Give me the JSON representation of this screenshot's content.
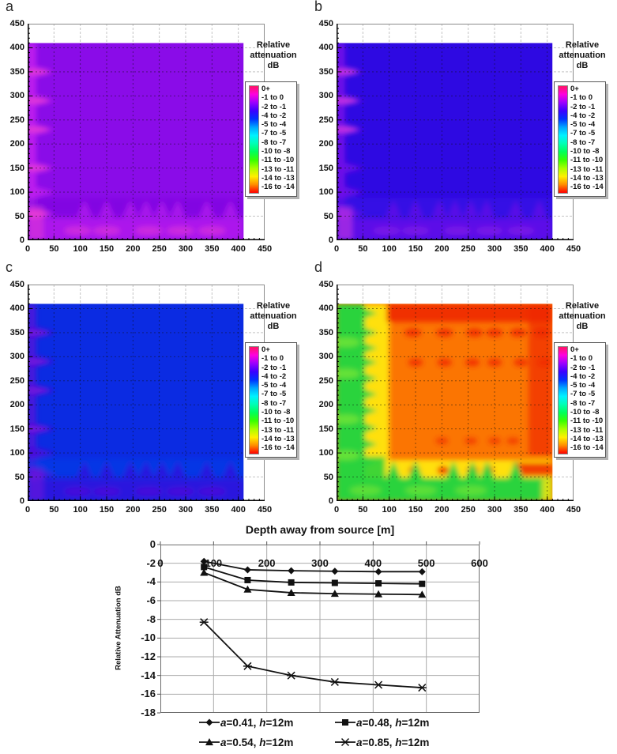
{
  "figure": {
    "panels": [
      {
        "id": "a",
        "letter": "a",
        "colors": {
          "base": "#8A0CE8",
          "left": "#BE1DEE",
          "left_spot": "#EA3ED2",
          "bottom": "#AC15EC",
          "bottom_spot": "#D52FDC",
          "band": "#7C0ADF"
        }
      },
      {
        "id": "b",
        "letter": "b",
        "colors": {
          "base": "#2E09E2",
          "left": "#6F11E8",
          "left_spot": "#D83AE0",
          "bottom": "#5C10E8",
          "bottom_spot": "#7E18E6",
          "band": "#3D0FE8"
        }
      },
      {
        "id": "c",
        "letter": "c",
        "colors": {
          "base": "#0B2BE2",
          "left": "#4A12DC",
          "left_spot": "#7B1ADC",
          "bottom": "#2A13DE",
          "bottom_spot": "#4B12D8",
          "band": "#0B3FE8"
        }
      },
      {
        "id": "d",
        "letter": "d",
        "colors": {
          "base": "#FB7502",
          "red": "#F02800",
          "yellow": "#FFE608",
          "green": "#2BD33C",
          "green_light": "#8CEC34"
        }
      }
    ],
    "heatmap_axes": {
      "ticks": [
        "0",
        "50",
        "100",
        "150",
        "200",
        "250",
        "300",
        "350",
        "400",
        "450"
      ],
      "x_range": [
        0,
        450
      ],
      "y_range": [
        0,
        450
      ],
      "data_extent": [
        0,
        410
      ]
    },
    "colorbar": {
      "title_lines": [
        "Relative",
        "attenuation",
        "dB"
      ],
      "entries": [
        "0+",
        "-1 to 0",
        "-2 to -1",
        "-4 to -2",
        "-5 to -4",
        "-7 to -5",
        "-8 to -7",
        "-10 to -8",
        "-11 to -10",
        "-13 to -11",
        "-14 to -13",
        "-16 to -14"
      ],
      "gradient": [
        "#FF1464",
        "#FF00E0",
        "#9C00FF",
        "#3A00FF",
        "#0030FF",
        "#00A6FF",
        "#00F2FF",
        "#00FFB4",
        "#00FF5A",
        "#38FF00",
        "#A8FF00",
        "#FFF000",
        "#FF8C00",
        "#FF0000"
      ]
    }
  },
  "chart_data": [
    {
      "type": "heatmap",
      "panel": "a",
      "title": "Relative attenuation dB",
      "x_range": [
        0,
        450
      ],
      "y_range": [
        0,
        450
      ],
      "data_extent": [
        0,
        410
      ],
      "legend_bins": [
        "0+",
        "-1 to 0",
        "-2 to -1",
        "-4 to -2",
        "-5 to -4",
        "-7 to -5",
        "-8 to -7",
        "-10 to -8",
        "-11 to -10",
        "-13 to -11",
        "-14 to -13",
        "-16 to -14"
      ],
      "summary": "Nearly uniform -2 to -1 dB (violet) field with -1 to 0 dB (magenta/pink) fringes along the left edge and bottom"
    },
    {
      "type": "heatmap",
      "panel": "b",
      "title": "Relative attenuation dB",
      "x_range": [
        0,
        450
      ],
      "y_range": [
        0,
        450
      ],
      "data_extent": [
        0,
        410
      ],
      "legend_bins": [
        "0+",
        "-1 to 0",
        "-2 to -1",
        "-4 to -2",
        "-5 to -4",
        "-7 to -5",
        "-8 to -7",
        "-10 to -8",
        "-11 to -10",
        "-13 to -11",
        "-14 to -13",
        "-16 to -14"
      ],
      "summary": "Nearly uniform -4 to -2 dB (blue-violet) field with -2 to -1 dB (violet/magenta) fringes along the left edge and bottom"
    },
    {
      "type": "heatmap",
      "panel": "c",
      "title": "Relative attenuation dB",
      "x_range": [
        0,
        450
      ],
      "y_range": [
        0,
        450
      ],
      "data_extent": [
        0,
        410
      ],
      "legend_bins": [
        "0+",
        "-1 to 0",
        "-2 to -1",
        "-4 to -2",
        "-5 to -4",
        "-7 to -5",
        "-8 to -7",
        "-10 to -8",
        "-11 to -10",
        "-13 to -11",
        "-14 to -13",
        "-16 to -14"
      ],
      "summary": "Nearly uniform -5 to -4 dB (blue) field with -4 to -2 dB (violet-blue) fringes along the left edge and bottom"
    },
    {
      "type": "heatmap",
      "panel": "d",
      "title": "Relative attenuation dB",
      "x_range": [
        0,
        450
      ],
      "y_range": [
        0,
        450
      ],
      "data_extent": [
        0,
        410
      ],
      "legend_bins": [
        "0+",
        "-1 to 0",
        "-2 to -1",
        "-4 to -2",
        "-5 to -4",
        "-7 to -5",
        "-8 to -7",
        "-10 to -8",
        "-11 to -10",
        "-13 to -11",
        "-14 to -13",
        "-16 to -14"
      ],
      "summary": "Interior -16 to -14 dB (orange/red) with -11 to -8 dB (green) borders along the left edge and bottom and a -14 to -13 dB (yellow) transition band"
    },
    {
      "type": "line",
      "title": "Depth away from source [m]",
      "ylabel": "Relative  Attenuation dB",
      "x": [
        82,
        164,
        246,
        328,
        410,
        492
      ],
      "series": [
        {
          "name": "a=0.41, h=12m",
          "marker": "diamond",
          "values": [
            -1.8,
            -2.7,
            -2.8,
            -2.85,
            -2.9,
            -2.9
          ]
        },
        {
          "name": "a=0.48, h=12m",
          "marker": "square",
          "values": [
            -2.4,
            -3.8,
            -4.05,
            -4.1,
            -4.15,
            -4.2
          ]
        },
        {
          "name": "a=0.54, h=12m",
          "marker": "triangle",
          "values": [
            -3.0,
            -4.8,
            -5.15,
            -5.25,
            -5.3,
            -5.35
          ]
        },
        {
          "name": "a=0.85, h=12m",
          "marker": "x",
          "values": [
            -8.3,
            -13.0,
            -14.0,
            -14.7,
            -15.0,
            -15.3
          ]
        }
      ],
      "xlim": [
        0,
        600
      ],
      "ylim": [
        -18,
        0
      ],
      "x_ticks": [
        "0",
        "100",
        "200",
        "300",
        "400",
        "500",
        "600"
      ],
      "y_ticks": [
        "0",
        "-2",
        "-4",
        "-6",
        "-8",
        "-10",
        "-12",
        "-14",
        "-16",
        "-18"
      ],
      "grid": true,
      "legend_position": "bottom"
    }
  ]
}
